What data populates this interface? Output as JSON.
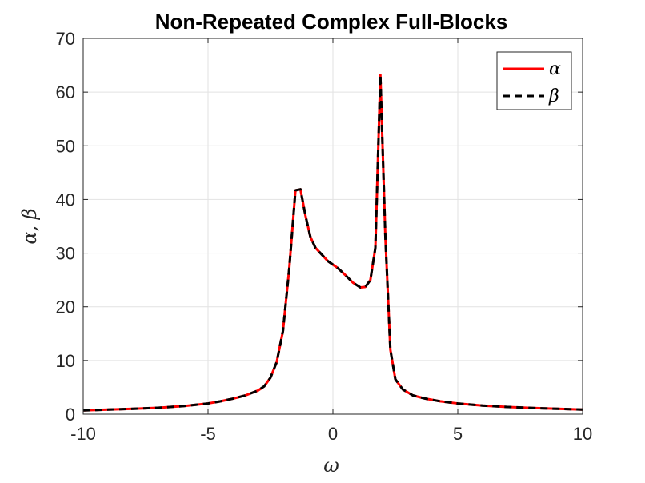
{
  "chart_data": {
    "type": "line",
    "title": "Non-Repeated Complex Full-Blocks",
    "xlabel": "ω",
    "ylabel": "α, β",
    "xlim": [
      -10,
      10
    ],
    "ylim": [
      0,
      70
    ],
    "xticks": [
      -10,
      -5,
      0,
      5,
      10
    ],
    "yticks": [
      0,
      10,
      20,
      30,
      40,
      50,
      60,
      70
    ],
    "grid": true,
    "legend_position": "top-right",
    "x": [
      -10,
      -9,
      -8,
      -7,
      -6,
      -5,
      -4.5,
      -4,
      -3.5,
      -3,
      -2.75,
      -2.5,
      -2.25,
      -2,
      -1.75,
      -1.5,
      -1.3,
      -1.1,
      -0.9,
      -0.7,
      -0.5,
      -0.2,
      0.2,
      0.5,
      0.8,
      1.1,
      1.3,
      1.5,
      1.7,
      1.9,
      2.1,
      2.3,
      2.5,
      2.8,
      3.2,
      3.7,
      4.3,
      5,
      6,
      7,
      8,
      9,
      10
    ],
    "series": [
      {
        "name": "α",
        "color": "#ff0000",
        "style": "solid",
        "values": [
          0.7,
          0.85,
          1.0,
          1.2,
          1.5,
          2.0,
          2.4,
          2.9,
          3.5,
          4.4,
          5.2,
          6.8,
          9.7,
          15.5,
          27,
          41.7,
          41.9,
          37,
          33,
          31,
          30,
          28.5,
          27.2,
          25.9,
          24.5,
          23.6,
          23.7,
          25.0,
          31,
          63.2,
          33,
          12,
          6.5,
          4.6,
          3.5,
          2.9,
          2.4,
          2.0,
          1.6,
          1.35,
          1.15,
          1.0,
          0.85
        ]
      },
      {
        "name": "β",
        "color": "#000000",
        "style": "dashed",
        "values": [
          0.7,
          0.85,
          1.0,
          1.2,
          1.5,
          2.0,
          2.4,
          2.9,
          3.5,
          4.4,
          5.2,
          6.8,
          9.7,
          15.5,
          27,
          41.7,
          41.9,
          37,
          33,
          31,
          30,
          28.5,
          27.2,
          25.9,
          24.5,
          23.6,
          23.7,
          25.0,
          31,
          63.2,
          33,
          12,
          6.5,
          4.6,
          3.5,
          2.9,
          2.4,
          2.0,
          1.6,
          1.35,
          1.15,
          1.0,
          0.85
        ]
      }
    ]
  }
}
